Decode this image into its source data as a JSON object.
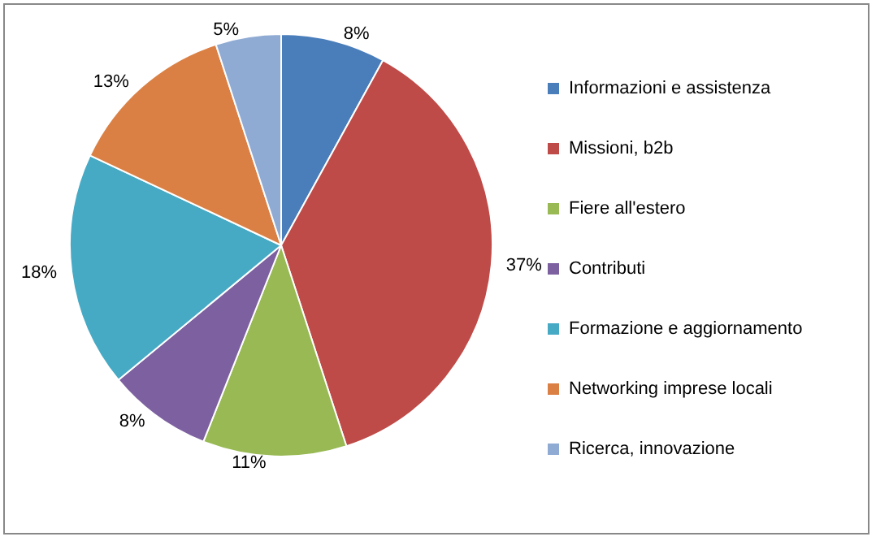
{
  "chart_data": {
    "type": "pie",
    "categories": [
      "Informazioni e assistenza",
      "Missioni, b2b",
      "Fiere all'estero",
      "Contributi",
      "Formazione e aggiornamento",
      "Networking imprese locali",
      "Ricerca, innovazione"
    ],
    "values": [
      8,
      37,
      11,
      8,
      18,
      13,
      5
    ],
    "value_labels": [
      "8%",
      "37%",
      "11%",
      "8%",
      "18%",
      "13%",
      "5%"
    ],
    "colors": [
      "#4a7ebb",
      "#be4b48",
      "#98b954",
      "#7d60a0",
      "#46aac5",
      "#db8044",
      "#8fabd4"
    ],
    "legend": "right"
  }
}
